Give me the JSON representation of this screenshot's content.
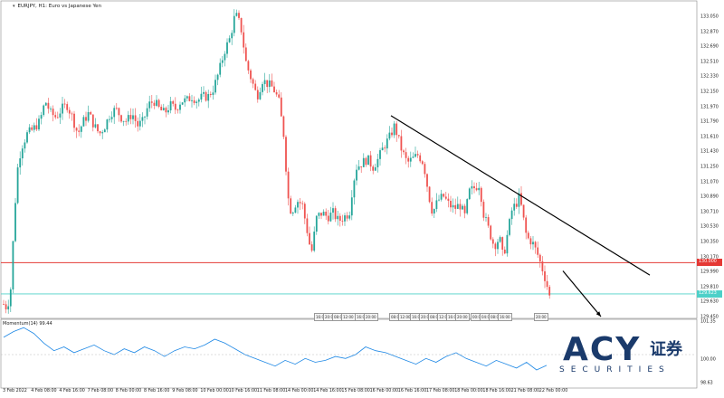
{
  "header": {
    "symbol_text": "EURJPY, H1: Euro vs Japanese Yen"
  },
  "indicator": {
    "label": "Momentum(14) 99.44",
    "ticks": [
      "101.35",
      "100.00",
      "98.63"
    ]
  },
  "price_axis": {
    "ticks": [
      "133.050",
      "132.870",
      "132.690",
      "132.510",
      "132.330",
      "132.150",
      "131.970",
      "131.790",
      "131.610",
      "131.430",
      "131.250",
      "131.070",
      "130.890",
      "130.710",
      "130.530",
      "130.350",
      "130.170",
      "129.990",
      "129.810",
      "129.630",
      "129.450"
    ],
    "red_tag": "130.000",
    "cyan_tag": "129.623"
  },
  "time_axis": {
    "labels": [
      "3 Feb 2022",
      "4 Feb 08:00",
      "4 Feb 16:00",
      "7 Feb 08:00",
      "8 Feb 00:00",
      "8 Feb 16:00",
      "9 Feb 08:00",
      "10 Feb 00:00",
      "10 Feb 16:00",
      "11 Feb 08:00",
      "14 Feb 00:00",
      "14 Feb 16:00",
      "15 Feb 08:00",
      "16 Feb 00:00",
      "16 Feb 16:00",
      "17 Feb 08:00",
      "18 Feb 00:00",
      "18 Feb 16:00",
      "21 Feb 08:00",
      "22 Feb 00:00"
    ]
  },
  "mini_labels": [
    "16:00",
    "20:00",
    "08:00",
    "12:00",
    "16:00",
    "20:00",
    "08:00",
    "12:00",
    "16:00",
    "20:00",
    "08:00",
    "12:00",
    "16:00",
    "20:00",
    "00:00",
    "04:00",
    "08:00",
    "16:00",
    "20:00"
  ],
  "logo": {
    "brand": "ACY",
    "chinese": "证券",
    "sub": "SECURITIES"
  },
  "colors": {
    "bull": "#26a69a",
    "bear": "#ef5350",
    "red_line": "#e53935",
    "cyan_line": "#4dd0c8",
    "momentum": "#1e88e5",
    "trend": "#000000",
    "brand": "#1a3a6b"
  },
  "chart_data": {
    "type": "candlestick",
    "symbol": "EURJPY",
    "timeframe": "H1",
    "ylim": [
      129.35,
      133.12
    ],
    "horizontal_levels": [
      130.0,
      129.623
    ],
    "close_path": [
      [
        0,
        129.5
      ],
      [
        4,
        129.45
      ],
      [
        8,
        129.7
      ],
      [
        12,
        130.6
      ],
      [
        16,
        131.2
      ],
      [
        20,
        131.4
      ],
      [
        26,
        131.55
      ],
      [
        32,
        131.6
      ],
      [
        40,
        131.7
      ],
      [
        46,
        131.95
      ],
      [
        52,
        131.8
      ],
      [
        58,
        131.75
      ],
      [
        64,
        131.85
      ],
      [
        70,
        131.9
      ],
      [
        76,
        131.75
      ],
      [
        82,
        131.55
      ],
      [
        88,
        131.7
      ],
      [
        94,
        131.8
      ],
      [
        100,
        131.65
      ],
      [
        106,
        131.55
      ],
      [
        112,
        131.65
      ],
      [
        118,
        131.8
      ],
      [
        124,
        131.85
      ],
      [
        130,
        131.75
      ],
      [
        136,
        131.7
      ],
      [
        142,
        131.8
      ],
      [
        148,
        131.65
      ],
      [
        154,
        131.7
      ],
      [
        160,
        131.9
      ],
      [
        166,
        131.95
      ],
      [
        172,
        131.85
      ],
      [
        178,
        131.8
      ],
      [
        184,
        131.9
      ],
      [
        190,
        131.85
      ],
      [
        196,
        131.95
      ],
      [
        202,
        131.95
      ],
      [
        208,
        132.0
      ],
      [
        214,
        131.95
      ],
      [
        220,
        132.0
      ],
      [
        226,
        132.0
      ],
      [
        232,
        132.1
      ],
      [
        238,
        132.3
      ],
      [
        244,
        132.55
      ],
      [
        250,
        132.7
      ],
      [
        256,
        133.0
      ],
      [
        262,
        132.85
      ],
      [
        268,
        132.4
      ],
      [
        274,
        132.2
      ],
      [
        280,
        132.0
      ],
      [
        286,
        132.2
      ],
      [
        292,
        132.15
      ],
      [
        298,
        132.1
      ],
      [
        304,
        131.95
      ],
      [
        310,
        131.5
      ],
      [
        314,
        130.8
      ],
      [
        318,
        130.6
      ],
      [
        324,
        130.75
      ],
      [
        330,
        130.7
      ],
      [
        336,
        130.35
      ],
      [
        340,
        130.1
      ],
      [
        346,
        130.55
      ],
      [
        352,
        130.6
      ],
      [
        358,
        130.55
      ],
      [
        364,
        130.6
      ],
      [
        370,
        130.5
      ],
      [
        376,
        130.55
      ],
      [
        382,
        130.6
      ],
      [
        386,
        130.95
      ],
      [
        390,
        131.15
      ],
      [
        396,
        131.2
      ],
      [
        402,
        131.25
      ],
      [
        408,
        131.15
      ],
      [
        414,
        131.25
      ],
      [
        420,
        131.4
      ],
      [
        426,
        131.5
      ],
      [
        432,
        131.65
      ],
      [
        436,
        131.5
      ],
      [
        440,
        131.35
      ],
      [
        446,
        131.2
      ],
      [
        452,
        131.25
      ],
      [
        458,
        131.3
      ],
      [
        464,
        131.2
      ],
      [
        470,
        130.8
      ],
      [
        474,
        130.6
      ],
      [
        480,
        130.75
      ],
      [
        486,
        130.8
      ],
      [
        492,
        130.7
      ],
      [
        498,
        130.65
      ],
      [
        504,
        130.7
      ],
      [
        510,
        130.55
      ],
      [
        514,
        130.85
      ],
      [
        520,
        130.9
      ],
      [
        526,
        130.95
      ],
      [
        530,
        130.6
      ],
      [
        536,
        130.4
      ],
      [
        542,
        130.2
      ],
      [
        548,
        130.3
      ],
      [
        552,
        130.05
      ],
      [
        556,
        130.3
      ],
      [
        562,
        130.65
      ],
      [
        566,
        130.7
      ],
      [
        570,
        130.8
      ],
      [
        574,
        130.55
      ],
      [
        578,
        130.3
      ],
      [
        584,
        130.25
      ],
      [
        590,
        130.1
      ],
      [
        596,
        129.9
      ],
      [
        600,
        129.75
      ],
      [
        604,
        129.55
      ],
      [
        608,
        129.75
      ]
    ],
    "trend_lines": [
      {
        "from": [
          432,
          131.77
        ],
        "to": [
          718,
          129.85
        ]
      },
      {
        "from": [
          622,
          129.9
        ],
        "to": [
          664,
          129.35
        ],
        "arrow": true
      }
    ],
    "momentum": {
      "values": [
        100.9,
        101.2,
        101.4,
        101.1,
        100.6,
        100.2,
        100.4,
        100.1,
        100.3,
        100.5,
        100.2,
        100.0,
        100.3,
        100.1,
        100.4,
        100.2,
        99.9,
        100.2,
        100.4,
        100.3,
        100.5,
        100.8,
        100.6,
        100.3,
        100.0,
        99.8,
        99.6,
        99.4,
        99.7,
        99.5,
        99.8,
        99.6,
        99.7,
        99.9,
        99.8,
        100.0,
        100.4,
        100.2,
        100.1,
        99.9,
        99.7,
        99.5,
        99.8,
        99.6,
        99.9,
        100.1,
        99.8,
        99.6,
        99.4,
        99.7,
        99.5,
        99.3,
        99.6,
        99.2,
        99.44
      ],
      "ylim": [
        98.4,
        101.6
      ]
    }
  }
}
